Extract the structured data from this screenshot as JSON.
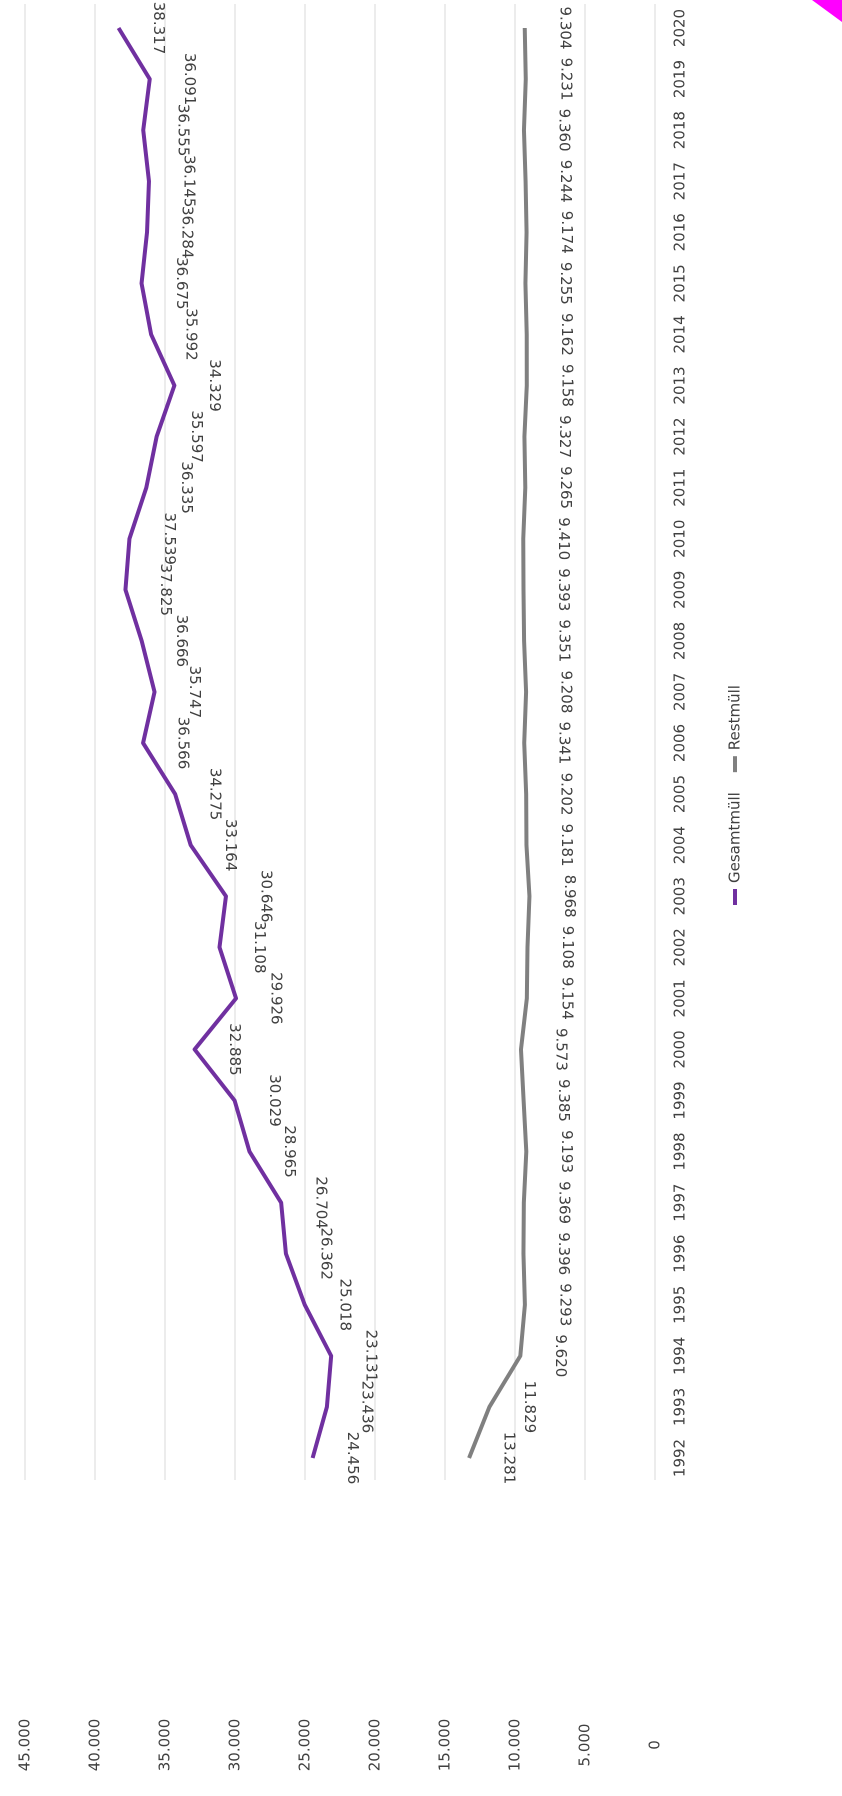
{
  "chart_data": {
    "type": "line",
    "categories": [
      "1992",
      "1993",
      "1994",
      "1995",
      "1996",
      "1997",
      "1998",
      "1999",
      "2000",
      "2001",
      "2002",
      "2003",
      "2004",
      "2005",
      "2006",
      "2007",
      "2008",
      "2009",
      "2010",
      "2011",
      "2012",
      "2013",
      "2014",
      "2015",
      "2016",
      "2017",
      "2018",
      "2019",
      "2020"
    ],
    "series": [
      {
        "name": "Gesamtmüll",
        "color": "#7030a0",
        "values": [
          24456,
          23436,
          23131,
          25018,
          26362,
          26704,
          28965,
          30029,
          32885,
          29926,
          31108,
          30646,
          33164,
          34275,
          36566,
          35747,
          36666,
          37825,
          37539,
          36335,
          35597,
          34329,
          35992,
          36675,
          36284,
          36145,
          36555,
          36091,
          38317
        ],
        "value_labels": [
          "24.456",
          "23.436",
          "23.131",
          "25.018",
          "26.362",
          "26.704",
          "28.965",
          "30.029",
          "32.885",
          "29.926",
          "31.108",
          "30.646",
          "33.164",
          "34.275",
          "36.566",
          "35.747",
          "36.666",
          "37.825",
          "37.539",
          "36.335",
          "35.597",
          "34.329",
          "35.992",
          "36.675",
          "36.284",
          "36.145",
          "36.555",
          "36.091",
          "38.317"
        ]
      },
      {
        "name": "Restmüll",
        "color": "#808080",
        "values": [
          13281,
          11829,
          9620,
          9293,
          9396,
          9369,
          9193,
          9385,
          9573,
          9154,
          9108,
          8968,
          9181,
          9202,
          9341,
          9208,
          9351,
          9393,
          9410,
          9265,
          9327,
          9158,
          9162,
          9255,
          9174,
          9244,
          9360,
          9231,
          9304
        ],
        "value_labels": [
          "13.281",
          "11.829",
          "9.620",
          "9.293",
          "9.396",
          "9.369",
          "9.193",
          "9.385",
          "9.573",
          "9.154",
          "9.108",
          "8.968",
          "9.181",
          "9.202",
          "9.341",
          "9.208",
          "9.351",
          "9.393",
          "9.410",
          "9.265",
          "9.327",
          "9.158",
          "9.162",
          "9.255",
          "9.174",
          "9.244",
          "9.360",
          "9.231",
          "9.304"
        ]
      }
    ],
    "ylim": [
      0,
      45000
    ],
    "yticks": [
      0,
      {
        "value": 5000,
        "label": "5.000"
      },
      {
        "value": 10000,
        "label": "10.000"
      },
      {
        "value": 15000,
        "label": "15.000"
      },
      {
        "value": 20000,
        "label": "20.000"
      },
      {
        "value": 25000,
        "label": "25.000"
      },
      {
        "value": 30000,
        "label": "30.000"
      },
      {
        "value": 35000,
        "label": "35.000"
      },
      {
        "value": 40000,
        "label": "40.000"
      },
      {
        "value": 45000,
        "label": "45.000"
      }
    ],
    "grid": true,
    "legend": "bottom"
  }
}
